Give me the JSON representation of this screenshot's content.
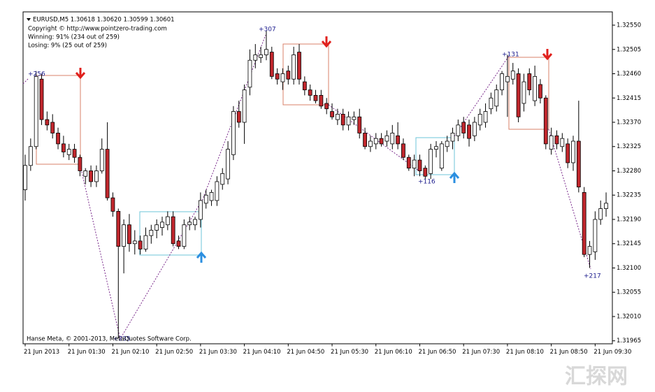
{
  "chart_data": {
    "type": "candlestick",
    "title": "EURUSD,M5  1.30618 1.30620 1.30599 1.30601",
    "copyright": "Copyright © http://www.pointzero-trading.com",
    "winning": "Winning: 91% (234 out of 259)",
    "losing": "Losing: 9% (25 out of 259)",
    "footer": "Hanse Meta, © 2001-2013, MetaQuotes Software Corp.",
    "watermark": "汇探网",
    "annotations": [
      "+256",
      "+307",
      "+116",
      "+131",
      "+217",
      "+235"
    ],
    "up_color": "#ffffff",
    "down_color": "#c1272d",
    "categories": [
      "21 Jun 2013",
      null,
      null,
      null,
      null,
      null,
      null,
      null,
      "21 Jun 01:30",
      null,
      null,
      null,
      null,
      null,
      null,
      null,
      "21 Jun 02:10",
      null,
      null,
      null,
      null,
      null,
      null,
      null,
      "21 Jun 02:50",
      null,
      null,
      null,
      null,
      null,
      null,
      null,
      "21 Jun 03:30",
      null,
      null,
      null,
      null,
      null,
      null,
      null,
      "21 Jun 04:10",
      null,
      null,
      null,
      null,
      null,
      null,
      null,
      "21 Jun 04:50",
      null,
      null,
      null,
      null,
      null,
      null,
      null,
      "21 Jun 05:30",
      null,
      null,
      null,
      null,
      null,
      null,
      null,
      "21 Jun 06:10",
      null,
      null,
      null,
      null,
      null,
      null,
      null,
      "21 Jun 06:50",
      null,
      null,
      null,
      null,
      null,
      null,
      null,
      "21 Jun 07:30",
      null,
      null,
      null,
      null,
      null,
      null,
      null,
      "21 Jun 08:10",
      null,
      null,
      null,
      null,
      null,
      null,
      null,
      "21 Jun 08:50",
      null,
      null,
      null,
      null,
      null,
      null,
      null,
      "21 Jun 09:30",
      null,
      null
    ],
    "open": [
      1.32245,
      1.3229,
      1.32325,
      1.3245,
      1.32375,
      1.3237,
      1.3235,
      1.3233,
      1.3231,
      1.3232,
      1.32305,
      1.3227,
      1.3228,
      1.3226,
      1.3228,
      1.3232,
      1.3223,
      1.32205,
      1.3214,
      1.3218,
      1.32145,
      1.3215,
      1.32135,
      1.3216,
      1.3217,
      1.32175,
      1.3218,
      1.32195,
      1.3215,
      1.3214,
      1.3218,
      1.3218,
      1.3219,
      1.3222,
      1.32225,
      1.32225,
      1.32255,
      1.32265,
      1.3231,
      1.3239,
      1.3237,
      1.32435,
      1.32485,
      1.3249,
      1.32495,
      1.325,
      1.3246,
      1.32445,
      1.32465,
      1.3245,
      1.325,
      1.32445,
      1.3243,
      1.3242,
      1.3242,
      1.32405,
      1.3239,
      1.32375,
      1.32385,
      1.32365,
      1.32375,
      1.3238,
      1.3235,
      1.32325,
      1.3233,
      1.3234,
      1.32335,
      1.3233,
      1.32345,
      1.3233,
      1.32305,
      1.32285,
      1.323,
      1.32285,
      1.32275,
      1.3232,
      1.32285,
      1.32325,
      1.32335,
      1.32345,
      1.3237,
      1.32365,
      1.32345,
      1.32365,
      1.3237,
      1.32395,
      1.324,
      1.3243,
      1.32445,
      1.3245,
      1.3246,
      1.32405,
      1.3246,
      1.3241,
      1.3244,
      1.32415,
      1.3232,
      1.32345,
      1.32325,
      1.3233,
      1.32295,
      1.32335,
      1.3224,
      1.32125,
      1.3213,
      1.3219,
      1.3221
    ],
    "high": [
      1.3231,
      1.3234,
      1.32465,
      1.3246,
      1.3239,
      1.32385,
      1.3236,
      1.32345,
      1.3233,
      1.3233,
      1.3231,
      1.32285,
      1.3229,
      1.3229,
      1.3234,
      1.3237,
      1.3224,
      1.3221,
      1.3219,
      1.322,
      1.3217,
      1.3216,
      1.32175,
      1.3218,
      1.3219,
      1.32195,
      1.32205,
      1.32205,
      1.3216,
      1.3219,
      1.32195,
      1.32195,
      1.3224,
      1.32245,
      1.32245,
      1.3227,
      1.32285,
      1.32335,
      1.324,
      1.3241,
      1.3244,
      1.32505,
      1.32515,
      1.3251,
      1.3254,
      1.3251,
      1.3247,
      1.3247,
      1.32475,
      1.3251,
      1.32515,
      1.32455,
      1.3244,
      1.3243,
      1.3243,
      1.32415,
      1.32405,
      1.32395,
      1.32395,
      1.3239,
      1.3239,
      1.32395,
      1.3236,
      1.32345,
      1.3235,
      1.3235,
      1.32355,
      1.32365,
      1.3237,
      1.3234,
      1.3231,
      1.3231,
      1.3231,
      1.3229,
      1.3233,
      1.32335,
      1.32335,
      1.32345,
      1.3236,
      1.32375,
      1.3238,
      1.32375,
      1.3238,
      1.32395,
      1.32405,
      1.32425,
      1.3244,
      1.32465,
      1.32495,
      1.3248,
      1.3247,
      1.3246,
      1.3247,
      1.32475,
      1.3245,
      1.3242,
      1.3236,
      1.32355,
      1.3235,
      1.3234,
      1.32345,
      1.3241,
      1.3225,
      1.3215,
      1.32205,
      1.32225,
      1.3224
    ],
    "low": [
      1.32225,
      1.3228,
      1.3232,
      1.32365,
      1.32355,
      1.3234,
      1.3232,
      1.32305,
      1.323,
      1.32295,
      1.3227,
      1.32255,
      1.3225,
      1.3225,
      1.32275,
      1.32225,
      1.32195,
      1.3197,
      1.3209,
      1.3213,
      1.32125,
      1.32125,
      1.3213,
      1.32145,
      1.32155,
      1.3216,
      1.3217,
      1.3214,
      1.32135,
      1.32135,
      1.3217,
      1.3217,
      1.32175,
      1.3221,
      1.32215,
      1.32215,
      1.32245,
      1.32255,
      1.323,
      1.3236,
      1.3233,
      1.3242,
      1.3247,
      1.3248,
      1.32485,
      1.3245,
      1.3244,
      1.3243,
      1.3244,
      1.3244,
      1.3244,
      1.3242,
      1.3241,
      1.32405,
      1.32395,
      1.32385,
      1.32375,
      1.32365,
      1.32355,
      1.32355,
      1.32365,
      1.3234,
      1.3232,
      1.32315,
      1.3232,
      1.32325,
      1.32325,
      1.3232,
      1.3232,
      1.323,
      1.3228,
      1.3227,
      1.3227,
      1.32265,
      1.32265,
      1.32305,
      1.3228,
      1.32315,
      1.3232,
      1.32335,
      1.3234,
      1.32325,
      1.32335,
      1.32355,
      1.3236,
      1.32385,
      1.3239,
      1.3242,
      1.3238,
      1.3244,
      1.3237,
      1.3239,
      1.3242,
      1.324,
      1.32405,
      1.3232,
      1.3231,
      1.3232,
      1.32315,
      1.32285,
      1.3228,
      1.3224,
      1.3212,
      1.321,
      1.32115,
      1.3218,
      1.32195
    ],
    "close": [
      1.3229,
      1.32325,
      1.32455,
      1.32375,
      1.32365,
      1.3235,
      1.3233,
      1.32315,
      1.3232,
      1.32305,
      1.3228,
      1.3228,
      1.3226,
      1.3228,
      1.3232,
      1.3223,
      1.32205,
      1.3214,
      1.3218,
      1.32145,
      1.3215,
      1.32135,
      1.3216,
      1.3217,
      1.3218,
      1.32185,
      1.32195,
      1.32145,
      1.3214,
      1.3218,
      1.32185,
      1.3219,
      1.32225,
      1.32235,
      1.3224,
      1.3226,
      1.32275,
      1.3232,
      1.3239,
      1.3237,
      1.3243,
      1.32485,
      1.32495,
      1.32495,
      1.32505,
      1.32455,
      1.3245,
      1.3246,
      1.3245,
      1.32495,
      1.3245,
      1.3243,
      1.3242,
      1.3241,
      1.324,
      1.32395,
      1.3238,
      1.32385,
      1.32365,
      1.3238,
      1.3238,
      1.3235,
      1.32325,
      1.32335,
      1.3234,
      1.3233,
      1.32345,
      1.3235,
      1.3233,
      1.32305,
      1.32285,
      1.323,
      1.3228,
      1.3227,
      1.3232,
      1.32325,
      1.3233,
      1.32335,
      1.3235,
      1.32365,
      1.3235,
      1.3234,
      1.3237,
      1.32385,
      1.3239,
      1.32415,
      1.3243,
      1.3246,
      1.32455,
      1.32465,
      1.3238,
      1.32445,
      1.3243,
      1.32455,
      1.32415,
      1.3233,
      1.32345,
      1.3233,
      1.3234,
      1.32295,
      1.32335,
      1.3225,
      1.32125,
      1.3214,
      1.3219,
      1.3221,
      1.3222
    ],
    "ylim": [
      1.3196,
      1.32575
    ],
    "yticks": [
      {
        "value": 1.3255,
        "label": "1.32550"
      },
      1.32505,
      {
        "value": 1.3246,
        "label": "1.32460"
      },
      1.32415,
      {
        "value": 1.3237,
        "label": "1.32370"
      },
      1.32325,
      {
        "value": 1.3228,
        "label": "1.32280"
      },
      1.32235,
      {
        "value": 1.3219,
        "label": "1.32190"
      },
      1.32145,
      {
        "value": 1.321,
        "label": "1.32100"
      },
      1.32055,
      {
        "value": 1.3201,
        "label": "1.32010"
      },
      1.31965
    ],
    "grid": false
  }
}
